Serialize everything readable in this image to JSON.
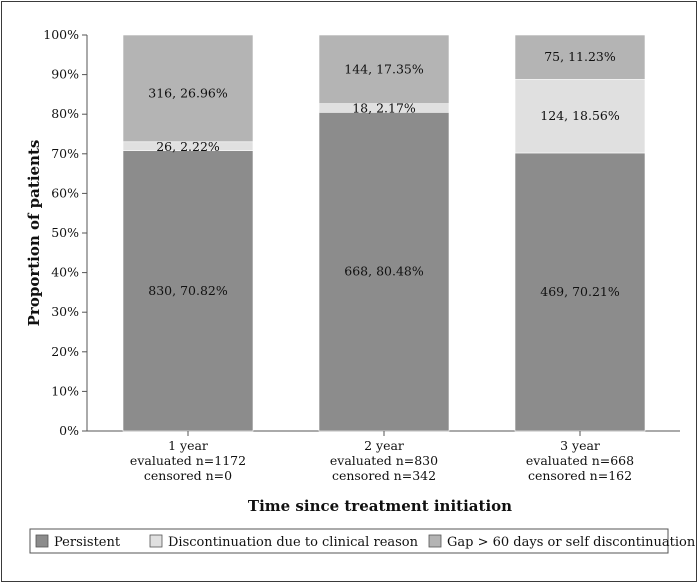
{
  "chart_data": {
    "type": "bar",
    "stacked": true,
    "title": "",
    "xlabel": "Time since treatment initiation",
    "ylabel": "Proportion of patients",
    "ylim": [
      0,
      100
    ],
    "yticks": [
      "0%",
      "10%",
      "20%",
      "30%",
      "40%",
      "50%",
      "60%",
      "70%",
      "80%",
      "90%",
      "100%"
    ],
    "categories": [
      [
        "1 year",
        "evaluated n=1172",
        "censored n=0"
      ],
      [
        "2 year",
        "evaluated n=830",
        "censored n=342"
      ],
      [
        "3 year",
        "evaluated n=668",
        "censored n=162"
      ]
    ],
    "series": [
      {
        "name": "Persistent",
        "color": "#8c8c8c",
        "values": [
          70.82,
          80.48,
          70.21
        ],
        "labels": [
          "830, 70.82%",
          "668, 80.48%",
          "469, 70.21%"
        ]
      },
      {
        "name": "Discontinuation due to clinical reason",
        "color": "#e0e0e0",
        "values": [
          2.22,
          2.17,
          18.56
        ],
        "labels": [
          "26, 2.22%",
          "18, 2.17%",
          "124, 18.56%"
        ]
      },
      {
        "name": "Gap > 60 days or self discontinuation",
        "color": "#b4b4b4",
        "values": [
          26.96,
          17.35,
          11.23
        ],
        "labels": [
          "316, 26.96%",
          "144, 17.35%",
          "75, 11.23%"
        ]
      }
    ],
    "grid": false,
    "legend_position": "bottom"
  }
}
